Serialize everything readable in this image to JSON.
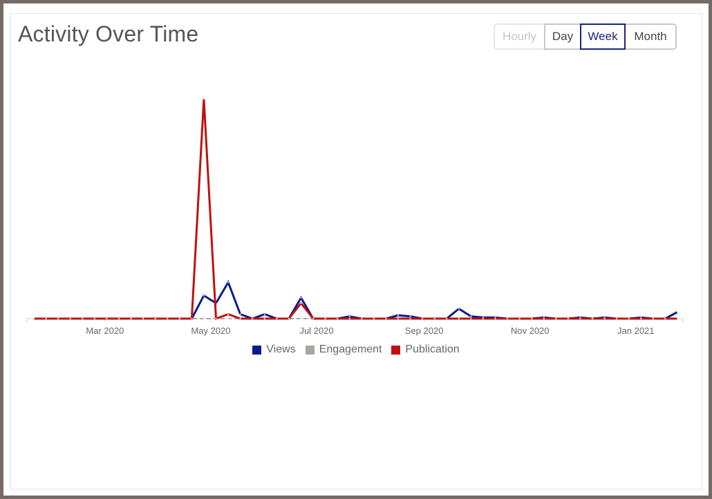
{
  "header": {
    "title": "Activity Over Time"
  },
  "granularity": {
    "options": [
      {
        "label": "Hourly",
        "state": "disabled"
      },
      {
        "label": "Day",
        "state": "normal"
      },
      {
        "label": "Week",
        "state": "active"
      },
      {
        "label": "Month",
        "state": "normal"
      }
    ]
  },
  "legend": {
    "items": [
      {
        "label": "Views",
        "color": "#0b1a8c"
      },
      {
        "label": "Engagement",
        "color": "#a6a6a0"
      },
      {
        "label": "Publication",
        "color": "#c01010"
      }
    ]
  },
  "chart_data": {
    "type": "line",
    "x_type": "weekly dates",
    "x": [
      "2020-01-20",
      "2020-01-27",
      "2020-02-03",
      "2020-02-10",
      "2020-02-17",
      "2020-02-24",
      "2020-03-02",
      "2020-03-09",
      "2020-03-16",
      "2020-03-23",
      "2020-03-30",
      "2020-04-06",
      "2020-04-13",
      "2020-04-20",
      "2020-04-27",
      "2020-05-04",
      "2020-05-11",
      "2020-05-18",
      "2020-05-25",
      "2020-06-01",
      "2020-06-08",
      "2020-06-15",
      "2020-06-22",
      "2020-06-29",
      "2020-07-06",
      "2020-07-13",
      "2020-07-20",
      "2020-07-27",
      "2020-08-03",
      "2020-08-10",
      "2020-08-17",
      "2020-08-24",
      "2020-08-31",
      "2020-09-07",
      "2020-09-14",
      "2020-09-21",
      "2020-09-28",
      "2020-10-05",
      "2020-10-12",
      "2020-10-19",
      "2020-10-26",
      "2020-11-02",
      "2020-11-09",
      "2020-11-16",
      "2020-11-23",
      "2020-11-30",
      "2020-12-07",
      "2020-12-14",
      "2020-12-21",
      "2020-12-28",
      "2021-01-04",
      "2021-01-11",
      "2021-01-18",
      "2021-01-25"
    ],
    "series": [
      {
        "name": "Views",
        "color": "#0b1a8c",
        "values": [
          0,
          0,
          0,
          0,
          0,
          0,
          0,
          0,
          0,
          0,
          0,
          0,
          0,
          0,
          10.5,
          7,
          16.5,
          2,
          0,
          2,
          0,
          0,
          9.5,
          0,
          0,
          0,
          1,
          0,
          0,
          0,
          1.5,
          1,
          0,
          0,
          0,
          4.5,
          1,
          0.5,
          0.5,
          0,
          0,
          0,
          0.5,
          0,
          0,
          0.5,
          0,
          0.5,
          0,
          0,
          0.5,
          0,
          0,
          3
        ]
      },
      {
        "name": "Engagement",
        "color": "#a6a6a0",
        "values": [
          0,
          0,
          0,
          0,
          0,
          0,
          0,
          0,
          0,
          0,
          0,
          0,
          0,
          0,
          0,
          0,
          0,
          0,
          0,
          0,
          0,
          0,
          0,
          0,
          0,
          0,
          0,
          0,
          0,
          0,
          0,
          0,
          0,
          0,
          0,
          0,
          0,
          0,
          0,
          0,
          0,
          0,
          0,
          0,
          0,
          0,
          0,
          0,
          0,
          0,
          0,
          0,
          0,
          0
        ]
      },
      {
        "name": "Publication",
        "color": "#c01010",
        "values": [
          0,
          0,
          0,
          0,
          0,
          0,
          0,
          0,
          0,
          0,
          0,
          0,
          0,
          0,
          100,
          0,
          2,
          0,
          0,
          0,
          0,
          0,
          7,
          0,
          0,
          0,
          0,
          0,
          0,
          0,
          0,
          0,
          0,
          0,
          0,
          0,
          0,
          0,
          0,
          0,
          0,
          0,
          0,
          0,
          0,
          0,
          0,
          0,
          0,
          0,
          0,
          0,
          0,
          0
        ]
      }
    ],
    "x_ticks": [
      {
        "date": "2020-03-01",
        "label": "Mar 2020"
      },
      {
        "date": "2020-05-01",
        "label": "May 2020"
      },
      {
        "date": "2020-07-01",
        "label": "Jul 2020"
      },
      {
        "date": "2020-09-01",
        "label": "Sep 2020"
      },
      {
        "date": "2020-11-01",
        "label": "Nov 2020"
      },
      {
        "date": "2021-01-01",
        "label": "Jan 2021"
      }
    ],
    "ylim": [
      0,
      100
    ],
    "y_axis_visible": false,
    "grid": false,
    "legend_position": "bottom-center"
  }
}
